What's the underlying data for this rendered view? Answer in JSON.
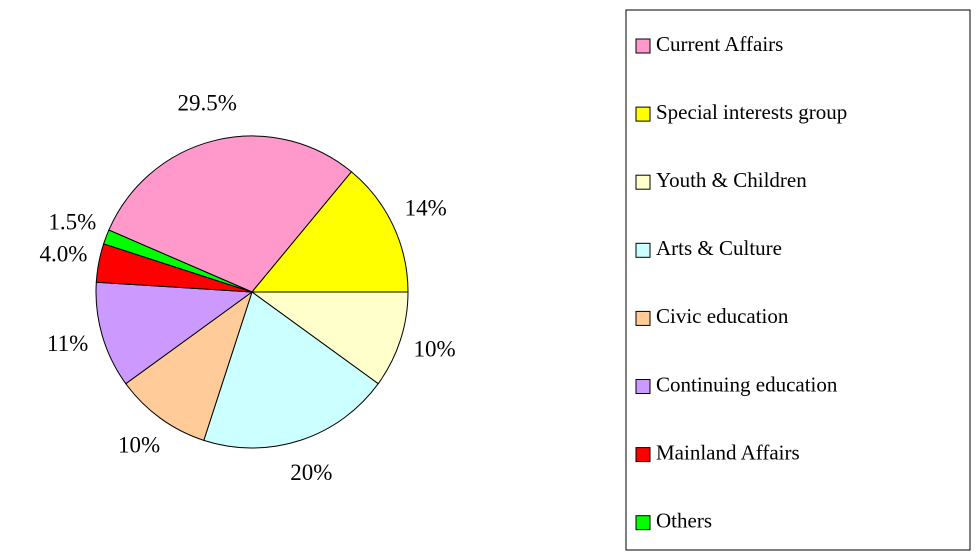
{
  "chart_data": {
    "type": "pie",
    "categories": [
      "Current Affairs",
      "Special interests group",
      "Youth & Children",
      "Arts & Culture",
      "Civic education",
      "Continuing education",
      "Mainland Affairs",
      "Others"
    ],
    "values": [
      29.5,
      14,
      10,
      20,
      10,
      11,
      4.0,
      1.5
    ],
    "value_labels": [
      "29.5%",
      "14%",
      "10%",
      "20%",
      "10%",
      "11%",
      "4.0%",
      "1.5%"
    ],
    "colors": [
      "#ff99cc",
      "#ffff00",
      "#ffffcc",
      "#ccffff",
      "#ffcc99",
      "#cc99ff",
      "#ff0000",
      "#00ff00"
    ],
    "legend": "right"
  }
}
